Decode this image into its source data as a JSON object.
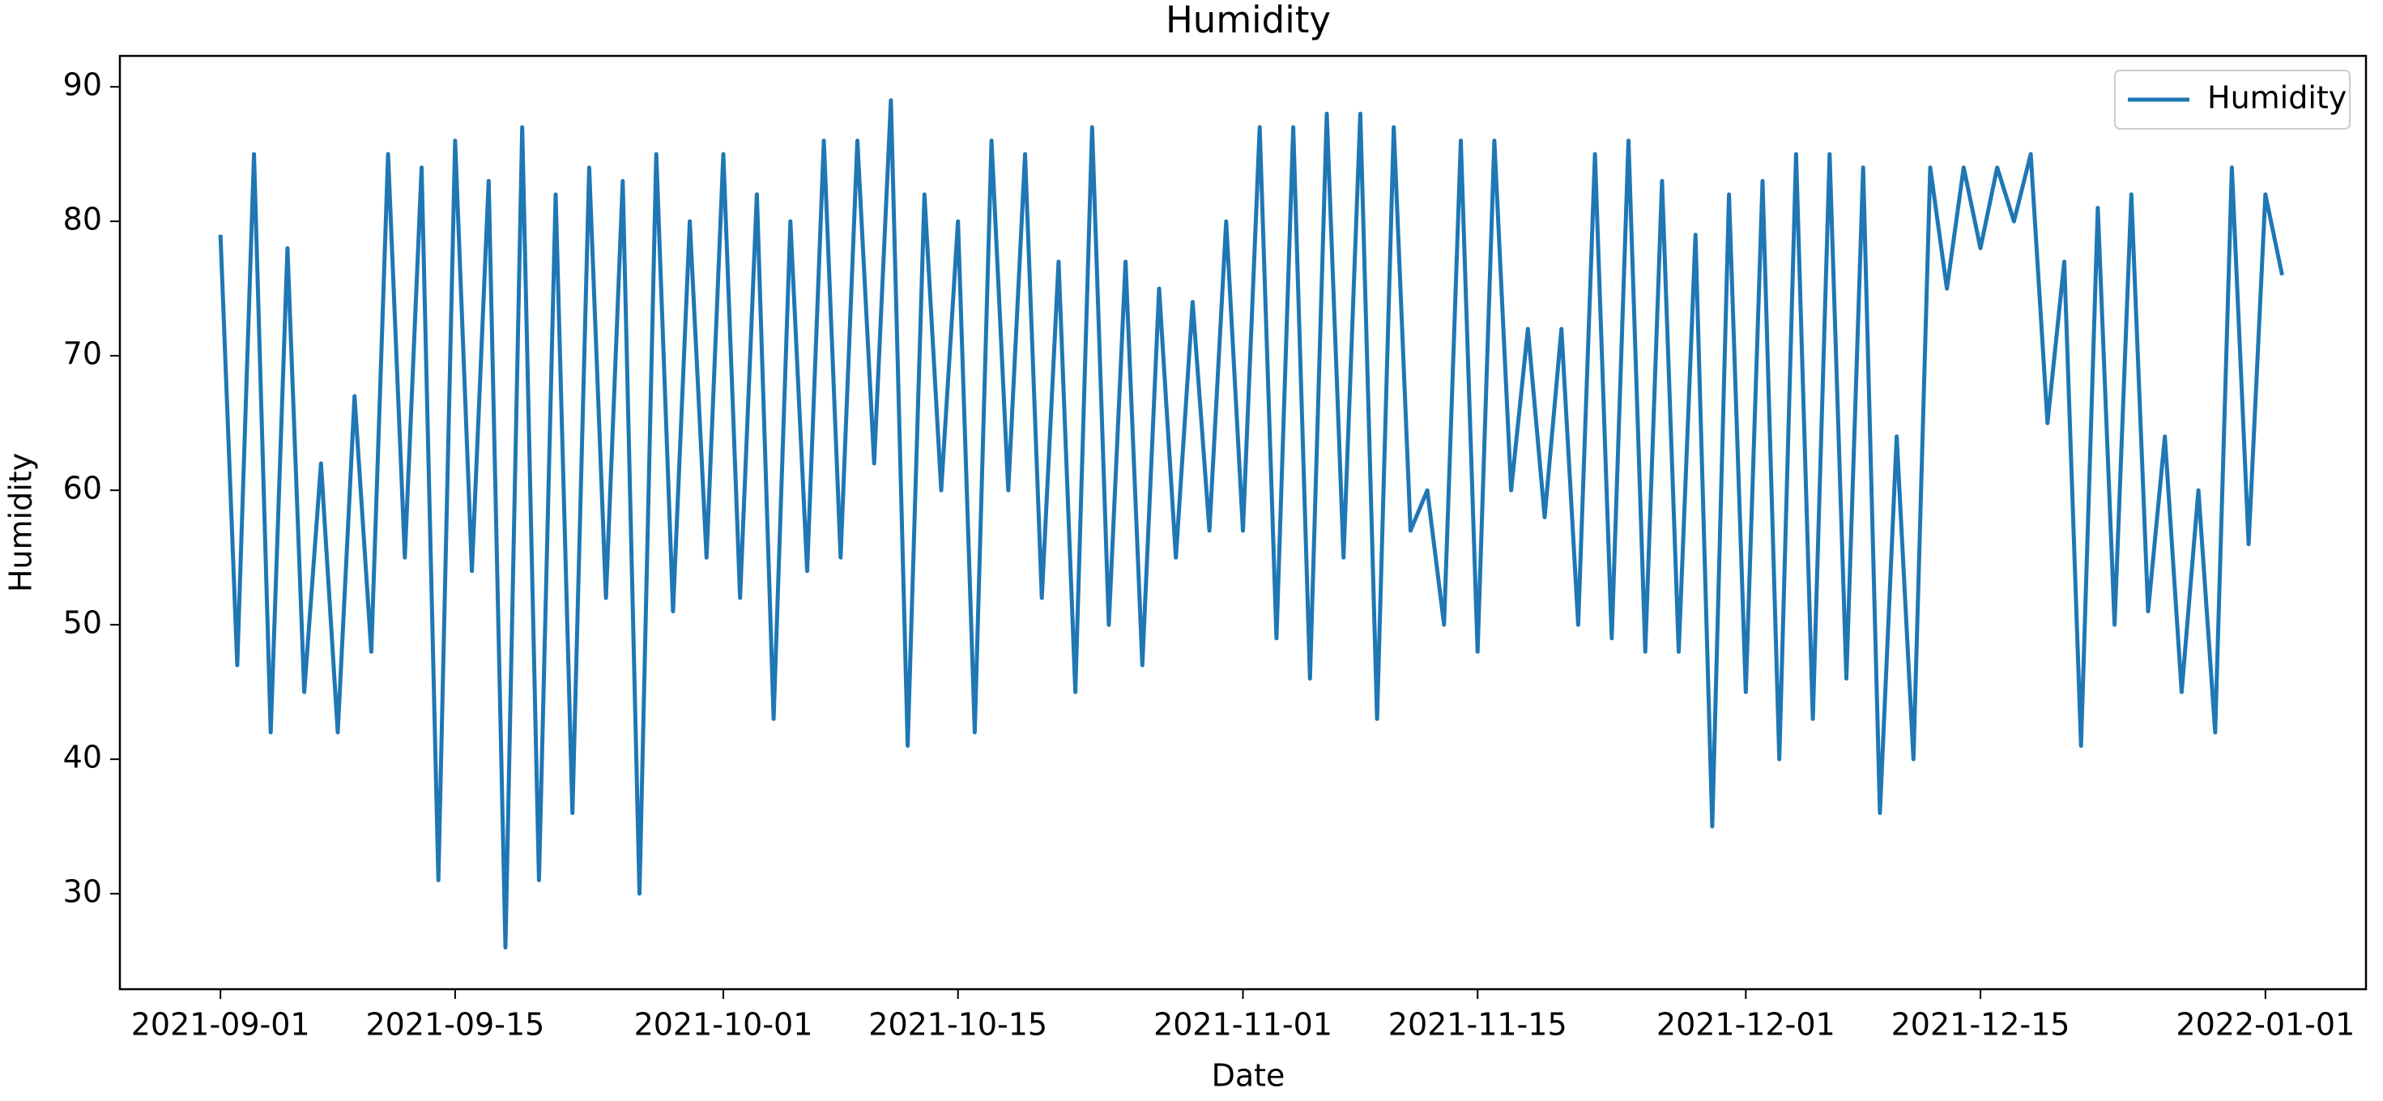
{
  "chart_data": {
    "type": "line",
    "title": "Humidity",
    "x_label": "Date",
    "y_label": "Humidity",
    "x": [
      "2021-09-01",
      "2021-09-02",
      "2021-09-03",
      "2021-09-04",
      "2021-09-05",
      "2021-09-06",
      "2021-09-07",
      "2021-09-08",
      "2021-09-09",
      "2021-09-10",
      "2021-09-11",
      "2021-09-12",
      "2021-09-13",
      "2021-09-14",
      "2021-09-15",
      "2021-09-16",
      "2021-09-17",
      "2021-09-18",
      "2021-09-19",
      "2021-09-20",
      "2021-09-21",
      "2021-09-22",
      "2021-09-23",
      "2021-09-24",
      "2021-09-25",
      "2021-09-26",
      "2021-09-27",
      "2021-09-28",
      "2021-09-29",
      "2021-09-30",
      "2021-10-01",
      "2021-10-02",
      "2021-10-03",
      "2021-10-04",
      "2021-10-05",
      "2021-10-06",
      "2021-10-07",
      "2021-10-08",
      "2021-10-09",
      "2021-10-10",
      "2021-10-11",
      "2021-10-12",
      "2021-10-13",
      "2021-10-14",
      "2021-10-15",
      "2021-10-16",
      "2021-10-17",
      "2021-10-18",
      "2021-10-19",
      "2021-10-20",
      "2021-10-21",
      "2021-10-22",
      "2021-10-23",
      "2021-10-24",
      "2021-10-25",
      "2021-10-26",
      "2021-10-27",
      "2021-10-28",
      "2021-10-29",
      "2021-10-30",
      "2021-10-31",
      "2021-11-01",
      "2021-11-02",
      "2021-11-03",
      "2021-11-04",
      "2021-11-05",
      "2021-11-06",
      "2021-11-07",
      "2021-11-08",
      "2021-11-09",
      "2021-11-10",
      "2021-11-11",
      "2021-11-12",
      "2021-11-13",
      "2021-11-14",
      "2021-11-15",
      "2021-11-16",
      "2021-11-17",
      "2021-11-18",
      "2021-11-19",
      "2021-11-20",
      "2021-11-21",
      "2021-11-22",
      "2021-11-23",
      "2021-11-24",
      "2021-11-25",
      "2021-11-26",
      "2021-11-27",
      "2021-11-28",
      "2021-11-29",
      "2021-11-30",
      "2021-12-01",
      "2021-12-02",
      "2021-12-03",
      "2021-12-04",
      "2021-12-05",
      "2021-12-06",
      "2021-12-07",
      "2021-12-08",
      "2021-12-09",
      "2021-12-10",
      "2021-12-11",
      "2021-12-12",
      "2021-12-13",
      "2021-12-14",
      "2021-12-15",
      "2021-12-16",
      "2021-12-17",
      "2021-12-18",
      "2021-12-19",
      "2021-12-20",
      "2021-12-21",
      "2021-12-22",
      "2021-12-23",
      "2021-12-24",
      "2021-12-25",
      "2021-12-26",
      "2021-12-27",
      "2021-12-28",
      "2021-12-29",
      "2021-12-30",
      "2021-12-31",
      "2022-01-01",
      "2022-01-02"
    ],
    "series": [
      {
        "name": "Humidity",
        "color": "#1f77b4",
        "values": [
          79,
          47,
          85,
          42,
          78,
          45,
          62,
          42,
          67,
          48,
          85,
          55,
          84,
          31,
          86,
          54,
          83,
          26,
          87,
          31,
          82,
          36,
          84,
          52,
          83,
          30,
          85,
          51,
          80,
          55,
          85,
          52,
          82,
          43,
          80,
          54,
          86,
          55,
          86,
          62,
          89,
          41,
          82,
          60,
          80,
          42,
          86,
          60,
          85,
          52,
          77,
          45,
          87,
          50,
          77,
          47,
          75,
          55,
          74,
          57,
          80,
          57,
          87,
          49,
          87,
          46,
          88,
          55,
          88,
          43,
          87,
          57,
          60,
          50,
          86,
          48,
          86,
          60,
          72,
          58,
          72,
          50,
          85,
          49,
          86,
          48,
          83,
          48,
          79,
          35,
          82,
          45,
          83,
          40,
          85,
          43,
          85,
          46,
          84,
          36,
          64,
          40,
          84,
          75,
          84,
          78,
          84,
          80,
          85,
          65,
          77,
          41,
          81,
          50,
          82,
          51,
          64,
          45,
          60,
          42,
          84,
          56,
          82,
          76
        ]
      }
    ],
    "xlim": [
      "2021-08-26",
      "2022-01-07"
    ],
    "xticks": [
      "2021-09-01",
      "2021-09-15",
      "2021-10-01",
      "2021-10-15",
      "2021-11-01",
      "2021-11-15",
      "2021-12-01",
      "2021-12-15",
      "2022-01-01"
    ],
    "ylim": [
      22.9,
      92.3
    ],
    "yticks": [
      30,
      40,
      50,
      60,
      70,
      80,
      90
    ],
    "grid": false,
    "legend": "upper right"
  }
}
